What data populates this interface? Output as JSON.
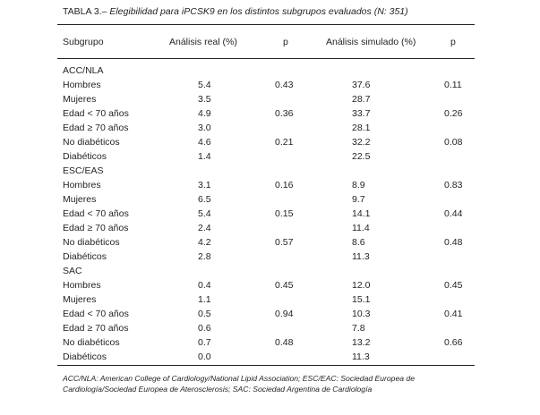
{
  "table": {
    "title_prefix": "TABLA 3.–",
    "title_desc": "Elegibilidad para iPCSK9 en los distintos subgrupos evaluados (N: 351)",
    "headers": {
      "subgroup": "Subgrupo",
      "real": "Análisis real (%)",
      "p1": "p",
      "simulated": "Análisis simulado (%)",
      "p2": "p"
    },
    "rows": [
      {
        "label": "ACC/NLA",
        "real": "",
        "p1": "",
        "sim": "",
        "p2": ""
      },
      {
        "label": "Hombres",
        "real": "5.4",
        "p1": "0.43",
        "sim": "37.6",
        "p2": "0.11"
      },
      {
        "label": "Mujeres",
        "real": "3.5",
        "p1": "",
        "sim": "28.7",
        "p2": ""
      },
      {
        "label": "Edad < 70 años",
        "real": "4.9",
        "p1": "0.36",
        "sim": "33.7",
        "p2": "0.26"
      },
      {
        "label": "Edad ≥ 70 años",
        "real": "3.0",
        "p1": "",
        "sim": "28.1",
        "p2": ""
      },
      {
        "label": "No diabéticos",
        "real": "4.6",
        "p1": "0.21",
        "sim": "32.2",
        "p2": "0.08"
      },
      {
        "label": "Diabéticos",
        "real": "1.4",
        "p1": "",
        "sim": "22.5",
        "p2": ""
      },
      {
        "label": "ESC/EAS",
        "real": "",
        "p1": "",
        "sim": "",
        "p2": ""
      },
      {
        "label": "Hombres",
        "real": "3.1",
        "p1": "0.16",
        "sim": "8.9",
        "p2": "0.83"
      },
      {
        "label": "Mujeres",
        "real": "6.5",
        "p1": "",
        "sim": "9.7",
        "p2": ""
      },
      {
        "label": "Edad < 70 años",
        "real": "5.4",
        "p1": "0.15",
        "sim": "14.1",
        "p2": "0.44"
      },
      {
        "label": "Edad ≥ 70 años",
        "real": "2.4",
        "p1": "",
        "sim": "11.4",
        "p2": ""
      },
      {
        "label": "No diabéticos",
        "real": "4.2",
        "p1": "0.57",
        "sim": "8.6",
        "p2": "0.48"
      },
      {
        "label": "Diabéticos",
        "real": "2.8",
        "p1": "",
        "sim": "11.3",
        "p2": ""
      },
      {
        "label": "SAC",
        "real": "",
        "p1": "",
        "sim": "",
        "p2": ""
      },
      {
        "label": "Hombres",
        "real": "0.4",
        "p1": "0.45",
        "sim": "12.0",
        "p2": "0.45"
      },
      {
        "label": "Mujeres",
        "real": "1.1",
        "p1": "",
        "sim": "15.1",
        "p2": ""
      },
      {
        "label": "Edad < 70 años",
        "real": "0.5",
        "p1": "0.94",
        "sim": "10.3",
        "p2": "0.41"
      },
      {
        "label": "Edad ≥ 70 años",
        "real": "0.6",
        "p1": "",
        "sim": "7.8",
        "p2": ""
      },
      {
        "label": "No diabéticos",
        "real": "0.7",
        "p1": "0.48",
        "sim": "13.2",
        "p2": "0.66"
      },
      {
        "label": "Diabéticos",
        "real": "0.0",
        "p1": "",
        "sim": "11.3",
        "p2": ""
      }
    ],
    "footnote": "ACC/NLA: American College of Cardiology/National Lipid Association; ESC/EAC: Sociedad Europea de Cardiología/Sociedad Europea de Aterosclerosis; SAC: Sociedad Argentina de Cardiología"
  }
}
